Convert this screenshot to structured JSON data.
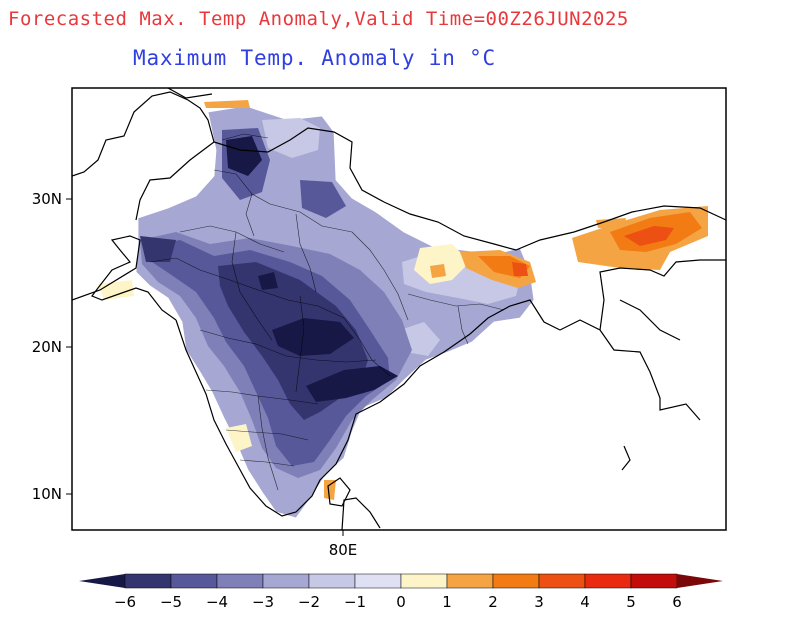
{
  "map": {
    "title": "Forecasted Max. Temp Anomaly,Valid Time=00Z26JUN2025",
    "subtitle": "Maximum Temp. Anomaly in °C",
    "title_color": "#e8383c",
    "subtitle_color": "#2f3fe0",
    "lat_labels": [
      "30N",
      "20N",
      "10N"
    ],
    "lon_labels": [
      "80E"
    ],
    "colorbar": {
      "labels": [
        "−6",
        "−5",
        "−4",
        "−3",
        "−2",
        "−1",
        "0",
        "1",
        "2",
        "3",
        "4",
        "5",
        "6"
      ],
      "colors": [
        "#171845",
        "#34356f",
        "#57589a",
        "#7f80b8",
        "#a6a7d3",
        "#c7c8e6",
        "#dfe0f3",
        "#fdf4c8",
        "#f5a444",
        "#f27b14",
        "#ec5012",
        "#ea2a10",
        "#c30d0a",
        "#7a0808"
      ]
    }
  }
}
